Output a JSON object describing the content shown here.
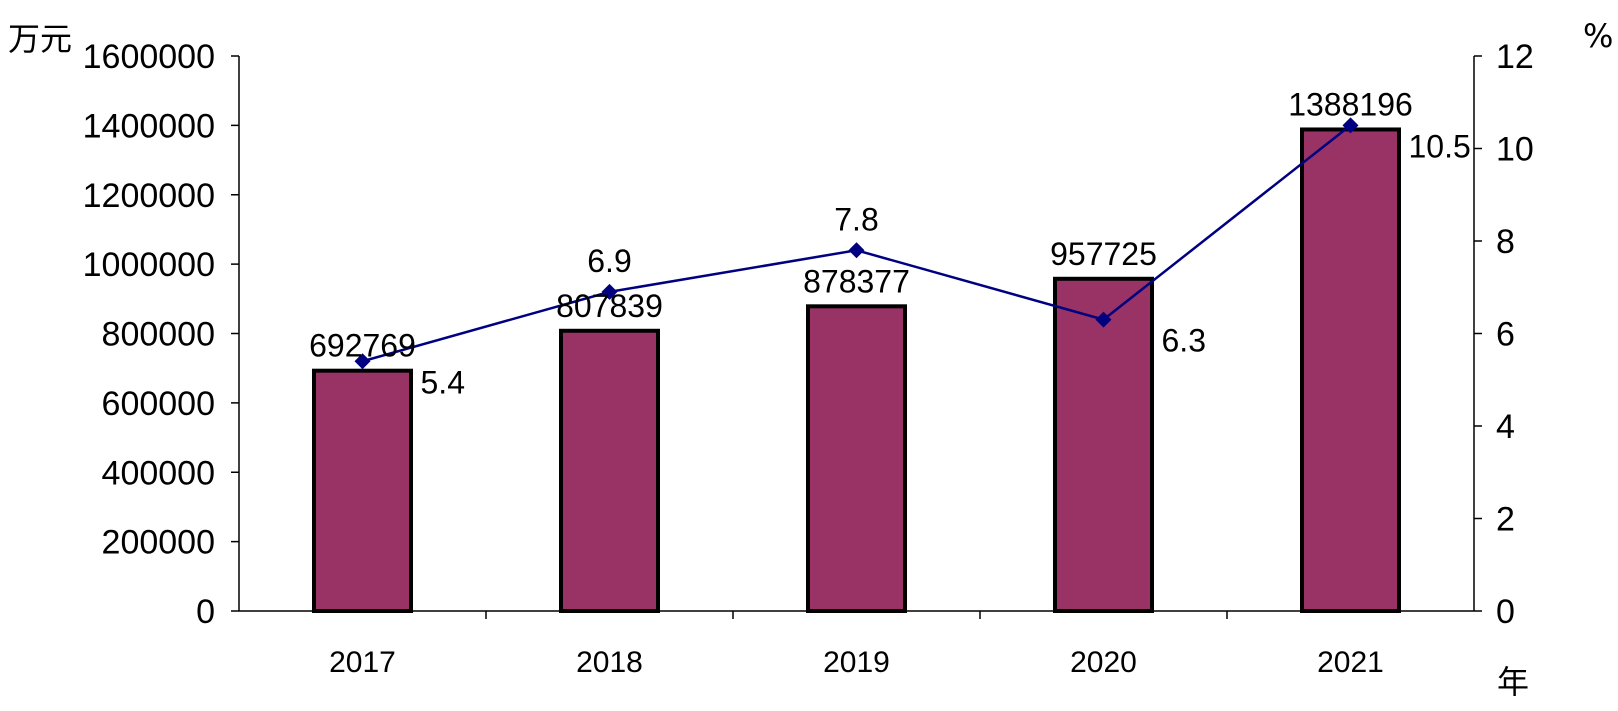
{
  "chart_data": {
    "type": "bar",
    "categories": [
      "2017",
      "2018",
      "2019",
      "2020",
      "2021"
    ],
    "series": [
      {
        "type": "bar",
        "axis": "left",
        "values": [
          692769,
          807839,
          878377,
          957725,
          1388196
        ],
        "color": "#993366"
      },
      {
        "type": "line",
        "axis": "right",
        "values": [
          5.4,
          6.9,
          7.8,
          6.3,
          10.5
        ],
        "color": "#000080",
        "marker": "diamond"
      }
    ],
    "left_axis": {
      "unit": "万元",
      "ylim": [
        0,
        1600000
      ],
      "ticks": [
        "0",
        "200000",
        "400000",
        "600000",
        "800000",
        "1000000",
        "1200000",
        "1400000",
        "1600000"
      ]
    },
    "right_axis": {
      "unit": "%",
      "ylim": [
        0,
        12
      ],
      "ticks": [
        "0",
        "2",
        "4",
        "6",
        "8",
        "10",
        "12"
      ]
    },
    "x_unit": "年",
    "bar_labels": [
      "692769",
      "807839",
      "878377",
      "957725",
      "1388196"
    ],
    "line_labels": [
      "5.4",
      "6.9",
      "7.8",
      "6.3",
      "10.5"
    ],
    "grid": false,
    "legend": "none"
  }
}
